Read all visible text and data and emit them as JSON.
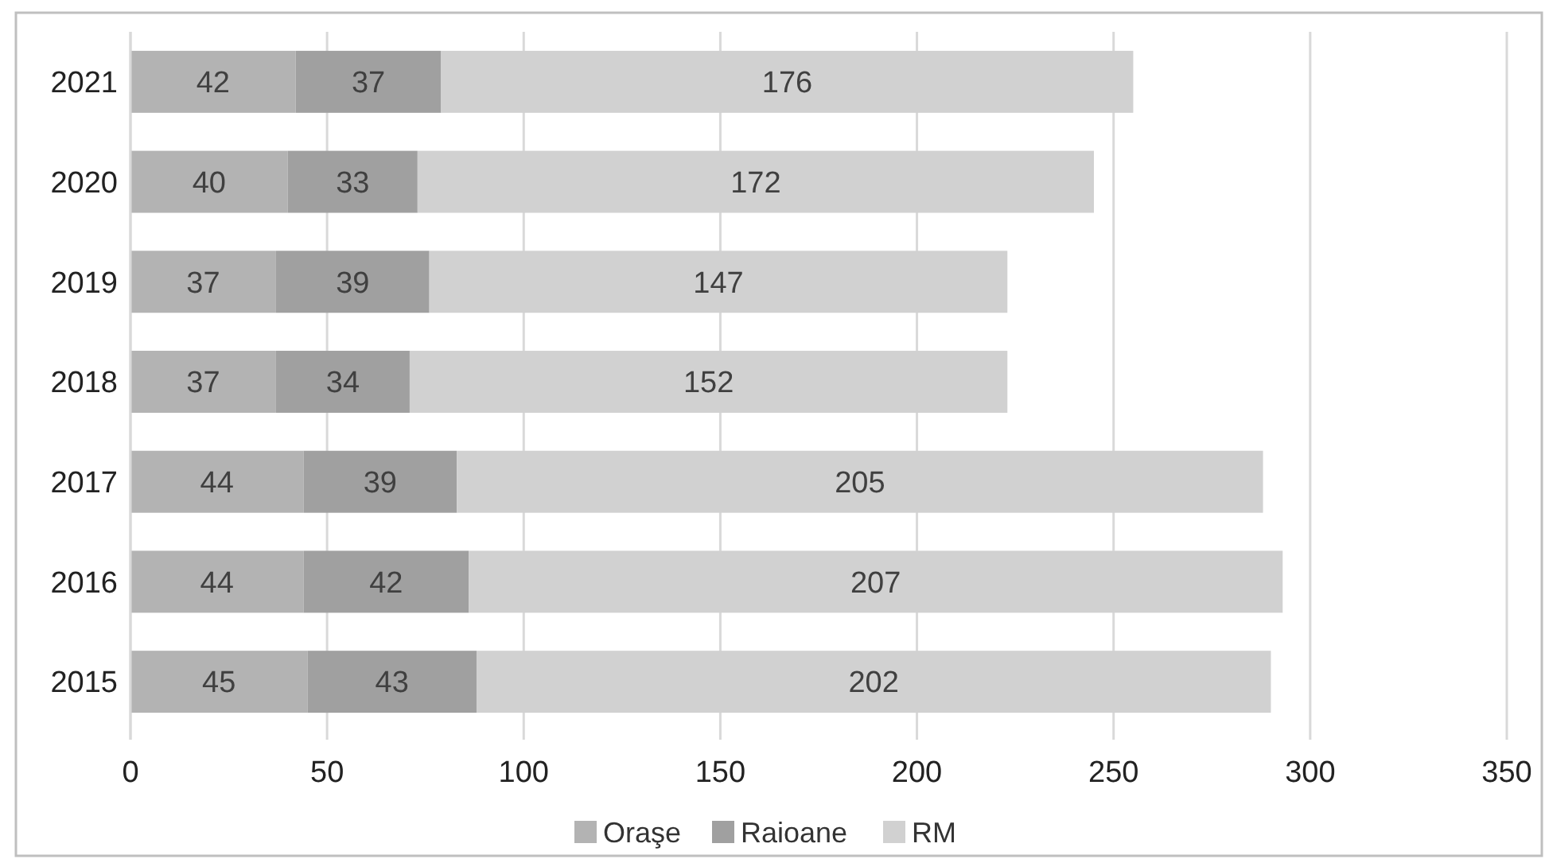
{
  "chart_data": {
    "type": "bar",
    "orientation": "horizontal",
    "stacked": true,
    "categories": [
      "2021",
      "2020",
      "2019",
      "2018",
      "2017",
      "2016",
      "2015"
    ],
    "series": [
      {
        "name": "Oraşe",
        "color": "#b3b3b3",
        "values": [
          42,
          40,
          37,
          37,
          44,
          44,
          45
        ]
      },
      {
        "name": "Raioane",
        "color": "#a0a0a0",
        "values": [
          37,
          33,
          39,
          34,
          39,
          42,
          43
        ]
      },
      {
        "name": "RM",
        "color": "#d1d1d1",
        "values": [
          176,
          172,
          147,
          152,
          205,
          207,
          202
        ]
      }
    ],
    "xlim": [
      0,
      350
    ],
    "xticks": [
      0,
      50,
      100,
      150,
      200,
      250,
      300,
      350
    ],
    "grid": "x",
    "legend": "bottom",
    "data_labels": true
  }
}
